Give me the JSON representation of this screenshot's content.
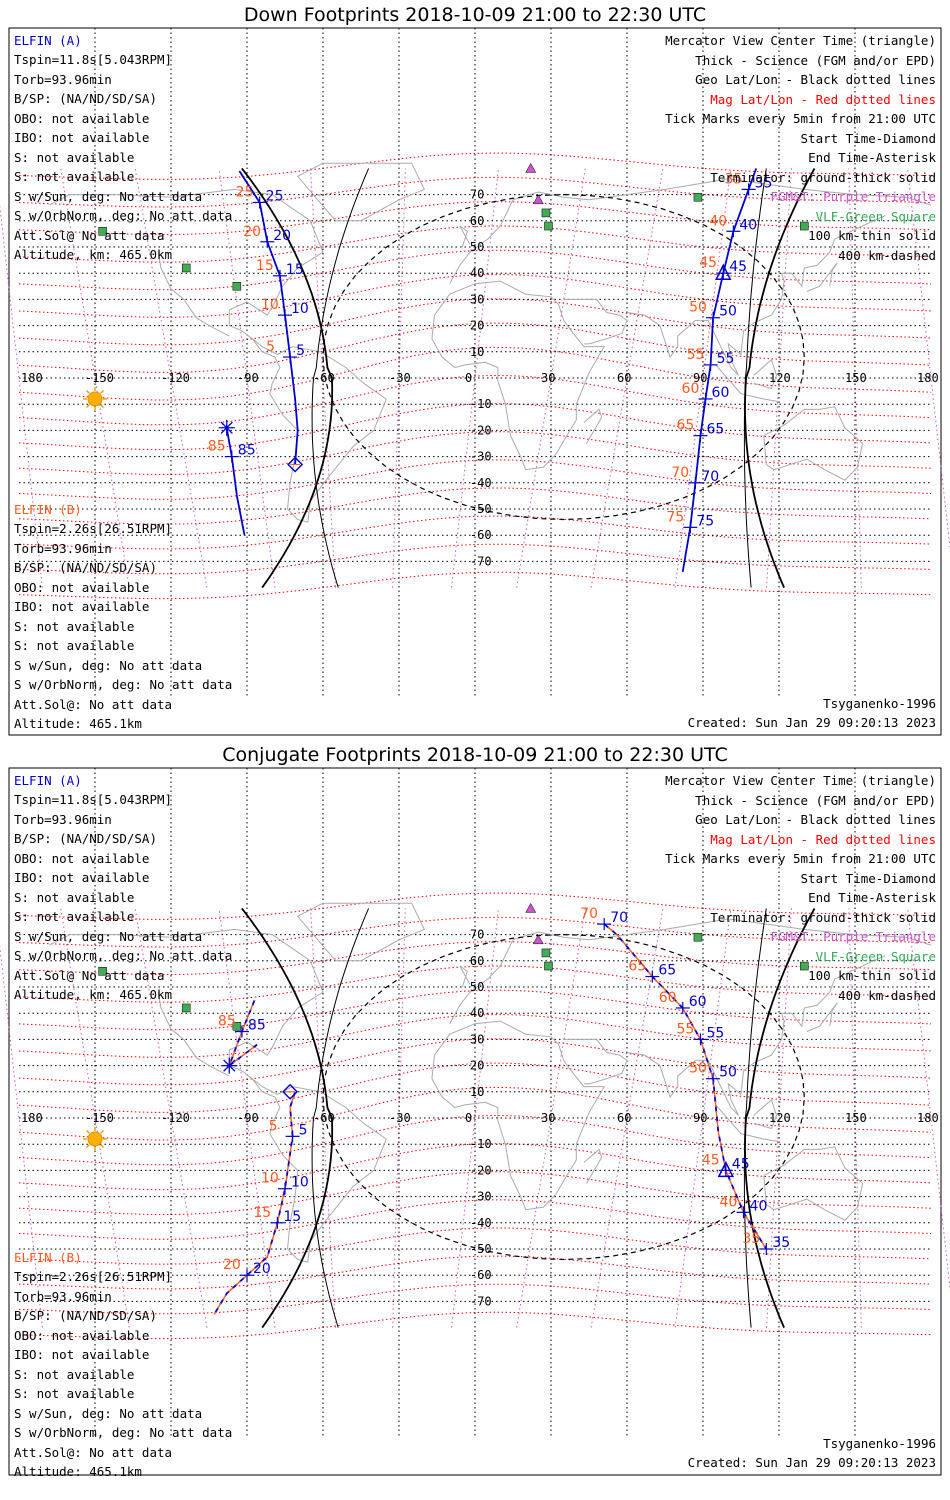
{
  "colors": {
    "spacecraft_a": "#0000cc",
    "spacecraft_b": "#ff5a1e",
    "mag_lines": "#ff0000",
    "geo_lines": "#000000",
    "fgm_purple": "#cc55cc",
    "vlf_green": "#44aa55",
    "coast": "#aaaaaa"
  },
  "icons": [
    "sun-icon",
    "purple-triangle-icon",
    "green-square-icon"
  ],
  "panels": [
    {
      "title": "Down Footprints 2018-10-09 21:00 to 22:30 UTC",
      "a_info": {
        "name": "ELFIN (A)",
        "lines": [
          "Tspin=11.8s[5.043RPM]",
          "Torb=93.96min",
          "B/SP: (NA/ND/SD/SA)",
          "OBO: not available",
          "IBO: not available",
          "S: not available",
          "S: not available",
          "S w/Sun, deg: No att data",
          "S w/OrbNorm, deg: No att data",
          "Att.Sol@ No att data",
          "Altitude, km: 465.0km"
        ]
      },
      "b_info": {
        "name": "ELFIN (B)",
        "lines": [
          "Tspin=2.26s[26.51RPM]",
          "Torb=93.96min",
          "B/SP: (NA/ND/SD/SA)",
          "OBO: not available",
          "IBO: not available",
          "S: not available",
          "S: not available",
          "S w/Sun, deg: No att data",
          "S w/OrbNorm, deg: No att data",
          "Att.Sol@: No att data",
          "Altitude: 465.1km"
        ]
      },
      "footer": {
        "model": "Tsyganenko-1996",
        "created": "Created: Sun Jan 29 09:20:13 2023"
      }
    },
    {
      "title": "Conjugate Footprints 2018-10-09 21:00 to 22:30 UTC",
      "a_info": {
        "name": "ELFIN (A)",
        "lines": [
          "Tspin=11.8s[5.043RPM]",
          "Torb=93.96min",
          "B/SP: (NA/ND/SD/SA)",
          "OBO: not available",
          "IBO: not available",
          "S: not available",
          "S: not available",
          "S w/Sun, deg: No att data",
          "S w/OrbNorm, deg: No att data",
          "Att.Sol@ No att data",
          "Altitude, km: 465.0km"
        ]
      },
      "b_info": {
        "name": "ELFIN (B)",
        "lines": [
          "Tspin=2.26s[26.51RPM]",
          "Torb=93.96min",
          "B/SP: (NA/ND/SD/SA)",
          "OBO: not available",
          "IBO: not available",
          "S: not available",
          "S: not available",
          "S w/Sun, deg: No att data",
          "S w/OrbNorm, deg: No att data",
          "Att.Sol@: No att data",
          "Altitude: 465.1km"
        ]
      },
      "footer": {
        "model": "Tsyganenko-1996",
        "created": "Created: Sun Jan 29 09:20:13 2023"
      }
    }
  ],
  "legend": [
    {
      "text": "Mercator View Center Time (triangle)",
      "color": "#000000"
    },
    {
      "text": "Thick - Science (FGM and/or EPD)",
      "color": "#000000"
    },
    {
      "text": "Geo Lat/Lon - Black dotted lines",
      "color": "#000000"
    },
    {
      "text": "Mag Lat/Lon - Red dotted lines",
      "color": "#ff0000"
    },
    {
      "text": "Tick Marks every 5min from 21:00 UTC",
      "color": "#000000"
    },
    {
      "text": "Start Time-Diamond",
      "color": "#000000"
    },
    {
      "text": "End Time-Asterisk",
      "color": "#000000"
    },
    {
      "text": "Terminator: ground-thick solid",
      "color": "#000000"
    },
    {
      "text": "FGM&T: Purple Triangle",
      "color": "#cc55cc"
    },
    {
      "text": "VLF-Green Square",
      "color": "#33aa55"
    },
    {
      "text": "100 km-thin solid",
      "color": "#000000"
    },
    {
      "text": "400 km-dashed",
      "color": "#000000"
    }
  ],
  "axes": {
    "lon_ticks": [
      "180",
      "-150",
      "-120",
      "-90",
      "-60",
      "-30",
      "0",
      "30",
      "60",
      "90",
      "120",
      "150",
      "180"
    ],
    "lat_ticks": [
      "70",
      "60",
      "50",
      "40",
      "30",
      "20",
      "10",
      "-10",
      "-20",
      "-30",
      "-40",
      "-50",
      "-60",
      "-70"
    ]
  },
  "chart_data": [
    {
      "type": "scatter",
      "title": "Down Footprints 2018-10-09 21:00 to 22:30 UTC",
      "xlim": [
        -180,
        180
      ],
      "ylim": [
        -80,
        80
      ],
      "series": [
        {
          "name": "ELFIN (A)",
          "track": [
            [
              -93,
              79
            ],
            [
              -85,
              67
            ],
            [
              -82,
              52
            ],
            [
              -77,
              39
            ],
            [
              -75,
              24
            ],
            [
              -73,
              8
            ],
            [
              -71,
              -8
            ],
            [
              -70,
              -20
            ],
            [
              -71,
              -33
            ]
          ],
          "ticks": [
            {
              "label": "25",
              "x": -85,
              "y": 67
            },
            {
              "label": "20",
              "x": -82,
              "y": 52
            },
            {
              "label": "15",
              "x": -77,
              "y": 39
            },
            {
              "label": "10",
              "x": -75,
              "y": 24
            },
            {
              "label": "5",
              "x": -73,
              "y": 8
            }
          ]
        },
        {
          "name": "ELFIN (A)",
          "track": [
            [
              111,
              80
            ],
            [
              108,
              72
            ],
            [
              102,
              56
            ],
            [
              98,
              40
            ],
            [
              94,
              23
            ],
            [
              93,
              5
            ],
            [
              91,
              -8
            ],
            [
              89,
              -22
            ],
            [
              87,
              -40
            ],
            [
              85,
              -57
            ],
            [
              82,
              -74
            ]
          ],
          "ticks": [
            {
              "label": "35",
              "x": 108,
              "y": 72
            },
            {
              "label": "40",
              "x": 102,
              "y": 56
            },
            {
              "label": "45",
              "x": 98,
              "y": 40
            },
            {
              "label": "50",
              "x": 94,
              "y": 23
            },
            {
              "label": "55",
              "x": 93,
              "y": 5
            },
            {
              "label": "60",
              "x": 91,
              "y": -8
            },
            {
              "label": "65",
              "x": 89,
              "y": -22
            },
            {
              "label": "70",
              "x": 87,
              "y": -40
            },
            {
              "label": "75",
              "x": 85,
              "y": -57
            }
          ]
        },
        {
          "name": "ELFIN (B)",
          "track": [
            [
              -98,
              -19
            ],
            [
              -96,
              -30
            ],
            [
              -94,
              -45
            ],
            [
              -91,
              -60
            ]
          ],
          "ticks": [
            {
              "label": "85",
              "x": -96,
              "y": -30
            }
          ]
        }
      ],
      "start": {
        "x": -71,
        "y": -33
      },
      "end": {
        "x": -98,
        "y": -19
      },
      "center": {
        "x": 98,
        "y": 40
      }
    },
    {
      "type": "scatter",
      "title": "Conjugate Footprints 2018-10-09 21:00 to 22:30 UTC",
      "xlim": [
        -180,
        180
      ],
      "ylim": [
        -80,
        80
      ],
      "series": [
        {
          "name": "ELFIN (A)",
          "track": [
            [
              51,
              74
            ],
            [
              56,
              70
            ],
            [
              70,
              54
            ],
            [
              82,
              42
            ],
            [
              89,
              30
            ],
            [
              94,
              15
            ],
            [
              96,
              -5
            ],
            [
              99,
              -20
            ],
            [
              106,
              -36
            ],
            [
              115,
              -50
            ]
          ],
          "ticks": [
            {
              "label": "70",
              "x": 51,
              "y": 74
            },
            {
              "label": "65",
              "x": 70,
              "y": 54
            },
            {
              "label": "60",
              "x": 82,
              "y": 42
            },
            {
              "label": "55",
              "x": 89,
              "y": 30
            },
            {
              "label": "50",
              "x": 94,
              "y": 15
            },
            {
              "label": "45",
              "x": 99,
              "y": -20
            },
            {
              "label": "40",
              "x": 106,
              "y": -36
            },
            {
              "label": "35",
              "x": 115,
              "y": -50
            }
          ]
        },
        {
          "name": "ELFIN (A)",
          "track": [
            [
              -71,
              10
            ],
            [
              -73,
              4
            ],
            [
              -72,
              -7
            ],
            [
              -75,
              -27
            ],
            [
              -78,
              -40
            ],
            [
              -82,
              -53
            ],
            [
              -90,
              -60
            ],
            [
              -98,
              -67
            ],
            [
              -103,
              -75
            ]
          ],
          "ticks": [
            {
              "label": "5",
              "x": -72,
              "y": -7
            },
            {
              "label": "10",
              "x": -75,
              "y": -27
            },
            {
              "label": "15",
              "x": -78,
              "y": -40
            },
            {
              "label": "20",
              "x": -90,
              "y": -60
            }
          ]
        },
        {
          "name": "ELFIN (B)",
          "track": [
            [
              -87,
              45
            ],
            [
              -92,
              33
            ],
            [
              -97,
              20
            ],
            [
              -86,
              28
            ]
          ],
          "ticks": [
            {
              "label": "85",
              "x": -92,
              "y": 33
            }
          ]
        }
      ],
      "start": {
        "x": -73,
        "y": 10
      },
      "end": {
        "x": -97,
        "y": 20
      },
      "center": {
        "x": 99,
        "y": -20
      }
    }
  ]
}
